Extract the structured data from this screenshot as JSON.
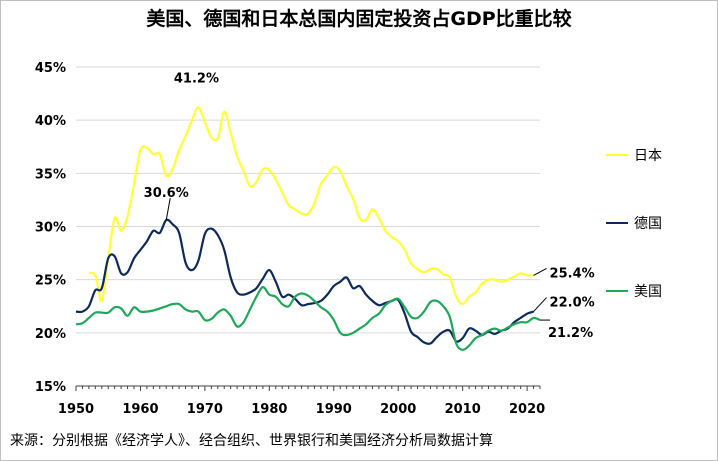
{
  "chart_data": {
    "type": "line",
    "title": "美国、德国和日本总国内固定投资占GDP比重比较",
    "xlabel": "",
    "ylabel": "",
    "xlim": [
      1950,
      2022
    ],
    "ylim": [
      15,
      45
    ],
    "x_ticks": [
      "1950",
      "1960",
      "1970",
      "1980",
      "1990",
      "2000",
      "2010",
      "2020"
    ],
    "y_ticks": [
      "15%",
      "20%",
      "25%",
      "30%",
      "35%",
      "40%",
      "45%"
    ],
    "grid": "horizontal",
    "legend": "right",
    "series": [
      {
        "name": "日本",
        "color": "#ffff33",
        "points": [
          [
            1952,
            25.6
          ],
          [
            1953,
            25.4
          ],
          [
            1954,
            23.0
          ],
          [
            1955,
            27.0
          ],
          [
            1956,
            30.8
          ],
          [
            1957,
            29.6
          ],
          [
            1958,
            31.0
          ],
          [
            1959,
            34.0
          ],
          [
            1960,
            37.2
          ],
          [
            1961,
            37.4
          ],
          [
            1962,
            36.8
          ],
          [
            1963,
            36.8
          ],
          [
            1964,
            34.8
          ],
          [
            1965,
            35.4
          ],
          [
            1966,
            37.2
          ],
          [
            1967,
            38.5
          ],
          [
            1968,
            40.0
          ],
          [
            1969,
            41.2
          ],
          [
            1970,
            39.8
          ],
          [
            1971,
            38.4
          ],
          [
            1972,
            38.3
          ],
          [
            1973,
            40.8
          ],
          [
            1974,
            38.8
          ],
          [
            1975,
            36.6
          ],
          [
            1976,
            35.2
          ],
          [
            1977,
            33.8
          ],
          [
            1978,
            34.2
          ],
          [
            1979,
            35.4
          ],
          [
            1980,
            35.3
          ],
          [
            1981,
            34.4
          ],
          [
            1982,
            33.2
          ],
          [
            1983,
            32.0
          ],
          [
            1984,
            31.6
          ],
          [
            1985,
            31.2
          ],
          [
            1986,
            31.2
          ],
          [
            1987,
            32.2
          ],
          [
            1988,
            34.0
          ],
          [
            1989,
            34.8
          ],
          [
            1990,
            35.6
          ],
          [
            1991,
            35.2
          ],
          [
            1992,
            33.8
          ],
          [
            1993,
            32.6
          ],
          [
            1994,
            30.8
          ],
          [
            1995,
            30.6
          ],
          [
            1996,
            31.6
          ],
          [
            1997,
            30.8
          ],
          [
            1998,
            29.6
          ],
          [
            1999,
            29.0
          ],
          [
            2000,
            28.6
          ],
          [
            2001,
            27.8
          ],
          [
            2002,
            26.5
          ],
          [
            2003,
            26.0
          ],
          [
            2004,
            25.7
          ],
          [
            2005,
            26.0
          ],
          [
            2006,
            26.0
          ],
          [
            2007,
            25.5
          ],
          [
            2008,
            25.2
          ],
          [
            2009,
            23.4
          ],
          [
            2010,
            22.7
          ],
          [
            2011,
            23.4
          ],
          [
            2012,
            23.8
          ],
          [
            2013,
            24.6
          ],
          [
            2014,
            25.0
          ],
          [
            2015,
            25.0
          ],
          [
            2016,
            24.8
          ],
          [
            2017,
            25.0
          ],
          [
            2018,
            25.3
          ],
          [
            2019,
            25.6
          ],
          [
            2020,
            25.4
          ],
          [
            2021,
            25.4
          ]
        ]
      },
      {
        "name": "德国",
        "color": "#0d2a5c",
        "points": [
          [
            1950,
            22.0
          ],
          [
            1951,
            22.0
          ],
          [
            1952,
            22.5
          ],
          [
            1953,
            24.0
          ],
          [
            1954,
            24.2
          ],
          [
            1955,
            27.0
          ],
          [
            1956,
            27.2
          ],
          [
            1957,
            25.6
          ],
          [
            1958,
            25.7
          ],
          [
            1959,
            27.0
          ],
          [
            1960,
            27.8
          ],
          [
            1961,
            28.6
          ],
          [
            1962,
            29.6
          ],
          [
            1963,
            29.4
          ],
          [
            1964,
            30.6
          ],
          [
            1965,
            30.2
          ],
          [
            1966,
            29.4
          ],
          [
            1967,
            26.6
          ],
          [
            1968,
            25.9
          ],
          [
            1969,
            26.8
          ],
          [
            1970,
            29.3
          ],
          [
            1971,
            29.8
          ],
          [
            1972,
            29.2
          ],
          [
            1973,
            27.8
          ],
          [
            1974,
            25.2
          ],
          [
            1975,
            23.8
          ],
          [
            1976,
            23.6
          ],
          [
            1977,
            23.8
          ],
          [
            1978,
            24.2
          ],
          [
            1979,
            25.1
          ],
          [
            1980,
            25.9
          ],
          [
            1981,
            24.8
          ],
          [
            1982,
            23.4
          ],
          [
            1983,
            23.6
          ],
          [
            1984,
            23.2
          ],
          [
            1985,
            22.6
          ],
          [
            1986,
            22.7
          ],
          [
            1987,
            22.8
          ],
          [
            1988,
            23.0
          ],
          [
            1989,
            23.6
          ],
          [
            1990,
            24.4
          ],
          [
            1991,
            24.8
          ],
          [
            1992,
            25.2
          ],
          [
            1993,
            24.2
          ],
          [
            1994,
            24.4
          ],
          [
            1995,
            23.6
          ],
          [
            1996,
            23.0
          ],
          [
            1997,
            22.6
          ],
          [
            1998,
            22.8
          ],
          [
            1999,
            23.0
          ],
          [
            2000,
            23.1
          ],
          [
            2001,
            21.8
          ],
          [
            2002,
            20.1
          ],
          [
            2003,
            19.6
          ],
          [
            2004,
            19.1
          ],
          [
            2005,
            19.0
          ],
          [
            2006,
            19.6
          ],
          [
            2007,
            20.1
          ],
          [
            2008,
            20.2
          ],
          [
            2009,
            19.2
          ],
          [
            2010,
            19.5
          ],
          [
            2011,
            20.4
          ],
          [
            2012,
            20.2
          ],
          [
            2013,
            19.8
          ],
          [
            2014,
            20.1
          ],
          [
            2015,
            19.9
          ],
          [
            2016,
            20.2
          ],
          [
            2017,
            20.4
          ],
          [
            2018,
            21.0
          ],
          [
            2019,
            21.4
          ],
          [
            2020,
            21.8
          ],
          [
            2021,
            22.0
          ]
        ]
      },
      {
        "name": "美国",
        "color": "#1fa85a",
        "points": [
          [
            1950,
            20.8
          ],
          [
            1951,
            20.9
          ],
          [
            1952,
            21.4
          ],
          [
            1953,
            21.9
          ],
          [
            1954,
            21.9
          ],
          [
            1955,
            21.9
          ],
          [
            1956,
            22.4
          ],
          [
            1957,
            22.3
          ],
          [
            1958,
            21.6
          ],
          [
            1959,
            22.4
          ],
          [
            1960,
            22.0
          ],
          [
            1961,
            22.0
          ],
          [
            1962,
            22.1
          ],
          [
            1963,
            22.3
          ],
          [
            1964,
            22.5
          ],
          [
            1965,
            22.7
          ],
          [
            1966,
            22.7
          ],
          [
            1967,
            22.2
          ],
          [
            1968,
            22.0
          ],
          [
            1969,
            22.0
          ],
          [
            1970,
            21.2
          ],
          [
            1971,
            21.3
          ],
          [
            1972,
            21.9
          ],
          [
            1973,
            22.2
          ],
          [
            1974,
            21.6
          ],
          [
            1975,
            20.6
          ],
          [
            1976,
            21.0
          ],
          [
            1977,
            22.2
          ],
          [
            1978,
            23.4
          ],
          [
            1979,
            24.3
          ],
          [
            1980,
            23.6
          ],
          [
            1981,
            23.4
          ],
          [
            1982,
            22.7
          ],
          [
            1983,
            22.5
          ],
          [
            1984,
            23.4
          ],
          [
            1985,
            23.7
          ],
          [
            1986,
            23.5
          ],
          [
            1987,
            23.0
          ],
          [
            1988,
            22.4
          ],
          [
            1989,
            22.0
          ],
          [
            1990,
            21.2
          ],
          [
            1991,
            20.0
          ],
          [
            1992,
            19.8
          ],
          [
            1993,
            20.0
          ],
          [
            1994,
            20.4
          ],
          [
            1995,
            20.8
          ],
          [
            1996,
            21.4
          ],
          [
            1997,
            21.8
          ],
          [
            1998,
            22.6
          ],
          [
            1999,
            23.0
          ],
          [
            2000,
            23.2
          ],
          [
            2001,
            22.4
          ],
          [
            2002,
            21.5
          ],
          [
            2003,
            21.4
          ],
          [
            2004,
            22.0
          ],
          [
            2005,
            22.9
          ],
          [
            2006,
            23.0
          ],
          [
            2007,
            22.5
          ],
          [
            2008,
            21.5
          ],
          [
            2009,
            19.0
          ],
          [
            2010,
            18.4
          ],
          [
            2011,
            18.8
          ],
          [
            2012,
            19.5
          ],
          [
            2013,
            19.8
          ],
          [
            2014,
            20.2
          ],
          [
            2015,
            20.4
          ],
          [
            2016,
            20.2
          ],
          [
            2017,
            20.5
          ],
          [
            2018,
            20.8
          ],
          [
            2019,
            21.0
          ],
          [
            2020,
            21.0
          ],
          [
            2021,
            21.4
          ],
          [
            2022,
            21.2
          ]
        ]
      }
    ],
    "annotations": [
      {
        "text": "41.2%",
        "series": "日本",
        "x": 1969,
        "y": 41.2,
        "leader": false
      },
      {
        "text": "30.6%",
        "series": "德国",
        "x": 1964,
        "y": 30.6,
        "leader": true
      },
      {
        "text": "25.4%",
        "series": "日本",
        "x": 2021,
        "y": 25.4,
        "leader": true
      },
      {
        "text": "22.0%",
        "series": "德国",
        "x": 2021,
        "y": 22.0,
        "leader": true
      },
      {
        "text": "21.2%",
        "series": "美国",
        "x": 2022,
        "y": 21.2,
        "leader": true
      }
    ]
  },
  "legend": [
    {
      "label": "日本",
      "color": "#ffff33"
    },
    {
      "label": "德国",
      "color": "#0d2a5c"
    },
    {
      "label": "美国",
      "color": "#1fa85a"
    }
  ],
  "source": "来源：分别根据《经济学人》、经合组织、世界银行和美国经济分析局数据计算"
}
